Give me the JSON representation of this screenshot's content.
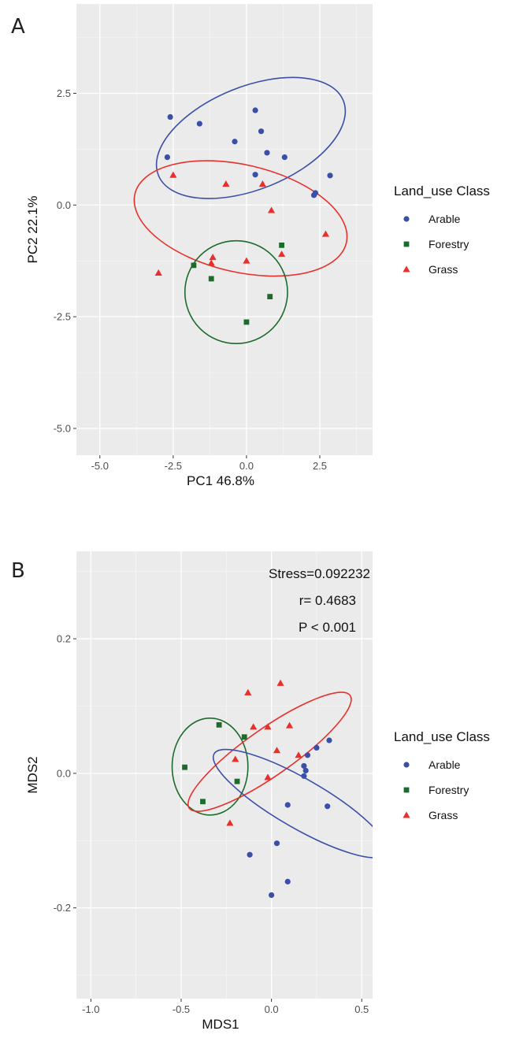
{
  "chart_data": [
    {
      "panel": "A",
      "type": "scatter",
      "xlabel": "PC1 46.8%",
      "ylabel": "PC2 22.1%",
      "xlim": [
        -5.8,
        4.3
      ],
      "ylim": [
        -5.6,
        4.5
      ],
      "xticks": [
        -5.0,
        -2.5,
        0.0,
        2.5
      ],
      "yticks": [
        -5.0,
        -2.5,
        0.0,
        2.5
      ],
      "grid": true,
      "legend_title": "Land_use Class",
      "legend_position": "right",
      "series": [
        {
          "name": "Arable",
          "color": "#3b4fa8",
          "shape": "circle",
          "points": [
            [
              -2.6,
              1.97
            ],
            [
              -1.6,
              1.82
            ],
            [
              0.3,
              2.12
            ],
            [
              -2.7,
              1.07
            ],
            [
              -0.4,
              1.42
            ],
            [
              0.5,
              1.65
            ],
            [
              0.7,
              1.17
            ],
            [
              1.3,
              1.07
            ],
            [
              0.3,
              0.68
            ],
            [
              2.3,
              0.22
            ],
            [
              2.35,
              0.27
            ],
            [
              2.85,
              0.66
            ]
          ]
        },
        {
          "name": "Forestry",
          "color": "#1d6b2c",
          "shape": "square",
          "points": [
            [
              -1.8,
              -1.35
            ],
            [
              -1.2,
              -1.65
            ],
            [
              1.2,
              -0.9
            ],
            [
              0.8,
              -2.05
            ],
            [
              0.0,
              -2.62
            ]
          ]
        },
        {
          "name": "Grass",
          "color": "#e8302b",
          "shape": "triangle",
          "points": [
            [
              -2.5,
              0.67
            ],
            [
              -0.7,
              0.47
            ],
            [
              0.55,
              0.47
            ],
            [
              0.85,
              -0.12
            ],
            [
              2.7,
              -0.65
            ],
            [
              -3.0,
              -1.52
            ],
            [
              -1.15,
              -1.17
            ],
            [
              -1.2,
              -1.3
            ],
            [
              0.0,
              -1.25
            ],
            [
              1.2,
              -1.1
            ]
          ]
        }
      ],
      "ellipses": [
        {
          "series": "Arable",
          "color": "#3b4fa8",
          "cx": 0.15,
          "cy": 1.5,
          "rx": 3.4,
          "ry": 1.15,
          "angle_deg": -22
        },
        {
          "series": "Grass",
          "color": "#e8302b",
          "cx": -0.2,
          "cy": -0.3,
          "rx": 3.7,
          "ry": 1.2,
          "angle_deg": 13
        },
        {
          "series": "Forestry",
          "color": "#1d6b2c",
          "cx": -0.35,
          "cy": -1.95,
          "rx": 1.75,
          "ry": 1.15,
          "angle_deg": 0
        }
      ]
    },
    {
      "panel": "B",
      "type": "scatter",
      "xlabel": "MDS1",
      "ylabel": "MDS2",
      "xlim": [
        -1.08,
        0.56
      ],
      "ylim": [
        -0.335,
        0.33
      ],
      "xticks": [
        -1.0,
        -0.5,
        0.0,
        0.5
      ],
      "yticks": [
        -0.2,
        0.0,
        0.2
      ],
      "grid": true,
      "legend_title": "Land_use Class",
      "legend_position": "right",
      "annotations": [
        "Stress=0.092232",
        "r= 0.4683",
        "P < 0.001"
      ],
      "series": [
        {
          "name": "Arable",
          "color": "#3b4fa8",
          "shape": "circle",
          "points": [
            [
              0.32,
              0.049
            ],
            [
              0.25,
              0.038
            ],
            [
              0.2,
              0.027
            ],
            [
              0.18,
              0.011
            ],
            [
              0.19,
              0.004
            ],
            [
              0.18,
              -0.004
            ],
            [
              0.09,
              -0.047
            ],
            [
              0.31,
              -0.049
            ],
            [
              -0.12,
              -0.121
            ],
            [
              0.03,
              -0.104
            ],
            [
              0.09,
              -0.161
            ],
            [
              0.0,
              -0.181
            ]
          ]
        },
        {
          "name": "Forestry",
          "color": "#1d6b2c",
          "shape": "square",
          "points": [
            [
              -0.29,
              0.072
            ],
            [
              -0.15,
              0.054
            ],
            [
              -0.48,
              0.009
            ],
            [
              -0.19,
              -0.012
            ],
            [
              -0.38,
              -0.042
            ]
          ]
        },
        {
          "name": "Grass",
          "color": "#e8302b",
          "shape": "triangle",
          "points": [
            [
              -0.13,
              0.12
            ],
            [
              0.05,
              0.134
            ],
            [
              -0.1,
              0.069
            ],
            [
              -0.02,
              0.069
            ],
            [
              0.1,
              0.071
            ],
            [
              0.03,
              0.034
            ],
            [
              0.15,
              0.027
            ],
            [
              -0.2,
              0.021
            ],
            [
              -0.02,
              -0.006
            ],
            [
              -0.23,
              -0.074
            ]
          ]
        }
      ],
      "ellipses": [
        {
          "series": "Forestry",
          "color": "#1d6b2c",
          "cx": -0.34,
          "cy": 0.01,
          "rx": 0.21,
          "ry": 0.072,
          "angle_deg": 0
        },
        {
          "series": "Grass",
          "color": "#e8302b",
          "cx": -0.01,
          "cy": 0.032,
          "rx": 0.13,
          "ry": 0.146,
          "angle_deg": 55
        },
        {
          "series": "Arable",
          "color": "#3b4fa8",
          "cx": 0.16,
          "cy": -0.045,
          "rx": 0.136,
          "ry": 0.148,
          "angle_deg": -60
        }
      ]
    }
  ]
}
